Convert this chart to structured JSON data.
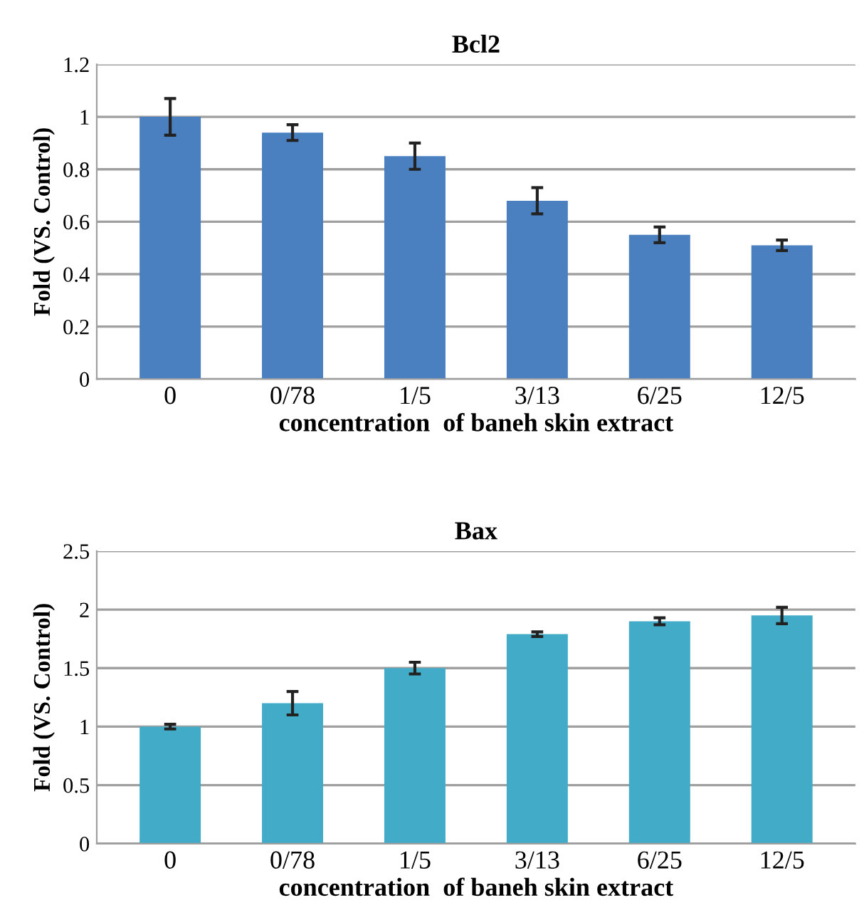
{
  "chart_data": [
    {
      "type": "bar",
      "title": "Bcl2",
      "xlabel": "concentration  of baneh skin extract",
      "ylabel": "Fold (VS. Control)",
      "categories": [
        "0",
        "0/78",
        "1/5",
        "3/13",
        "6/25",
        "12/5"
      ],
      "values": [
        1.0,
        0.94,
        0.85,
        0.68,
        0.55,
        0.51
      ],
      "errors": [
        0.07,
        0.03,
        0.05,
        0.05,
        0.03,
        0.02
      ],
      "color": "#4a7fc0",
      "ylim": [
        0,
        1.2
      ],
      "yticks": [
        0,
        0.2,
        0.4,
        0.6,
        0.8,
        1,
        1.2
      ],
      "grid": "y",
      "legend": false
    },
    {
      "type": "bar",
      "title": "Bax",
      "xlabel": "concentration  of baneh skin extract",
      "ylabel": "Fold (VS. Control)",
      "categories": [
        "0",
        "0/78",
        "1/5",
        "3/13",
        "6/25",
        "12/5"
      ],
      "values": [
        1.0,
        1.2,
        1.5,
        1.79,
        1.9,
        1.95
      ],
      "errors": [
        0.02,
        0.1,
        0.05,
        0.02,
        0.03,
        0.07
      ],
      "color": "#42abc8",
      "ylim": [
        0,
        2.5
      ],
      "yticks": [
        0,
        0.5,
        1,
        1.5,
        2,
        2.5
      ],
      "grid": "y",
      "legend": false
    }
  ]
}
